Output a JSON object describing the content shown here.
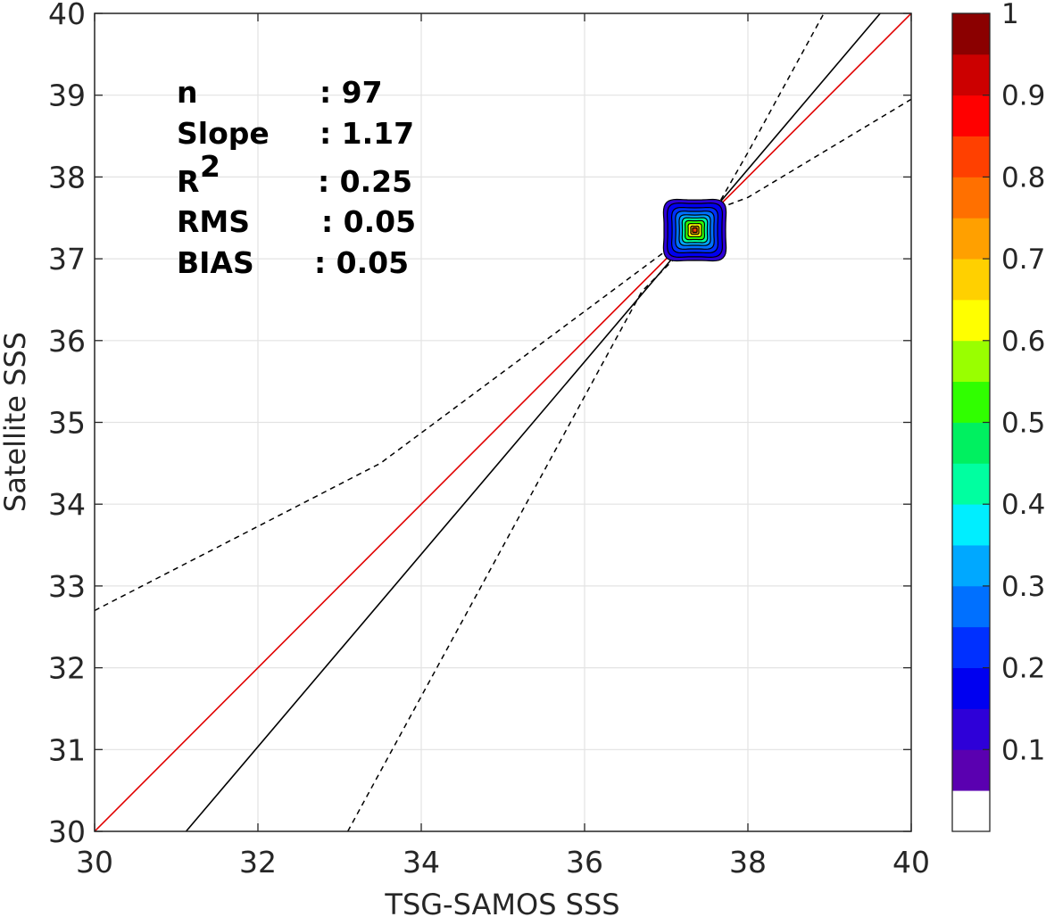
{
  "chart_data": {
    "type": "scatter",
    "title": "",
    "xlabel": "TSG-SAMOS SSS",
    "ylabel": "Satellite SSS",
    "xlim": [
      30,
      40
    ],
    "ylim": [
      30,
      40
    ],
    "xticks": [
      "30",
      "32",
      "34",
      "36",
      "38",
      "40"
    ],
    "yticks": [
      "30",
      "31",
      "32",
      "33",
      "34",
      "35",
      "36",
      "37",
      "38",
      "39",
      "40"
    ],
    "grid": true,
    "stats": [
      {
        "label": "n",
        "value": ": 97"
      },
      {
        "label": "Slope",
        "value": ": 1.17"
      },
      {
        "label": "R",
        "superscript": "2",
        "value": ": 0.25"
      },
      {
        "label": "RMS",
        "value": ": 0.05"
      },
      {
        "label": "BIAS",
        "value": ": 0.05"
      }
    ],
    "lines": [
      {
        "style": "one-to-one",
        "color": "#e00000",
        "points": [
          [
            30,
            30
          ],
          [
            40,
            40
          ]
        ]
      },
      {
        "style": "regression",
        "color": "#000000",
        "points": [
          [
            31.12,
            30
          ],
          [
            39.62,
            40
          ]
        ]
      },
      {
        "style": "confidence-upper",
        "color": "#000000",
        "dash": true,
        "points": [
          [
            30,
            32.7
          ],
          [
            33.5,
            34.5
          ],
          [
            37.0,
            37.1
          ],
          [
            37.6,
            37.6
          ],
          [
            38.0,
            37.75
          ],
          [
            40,
            38.95
          ]
        ]
      },
      {
        "style": "confidence-lower",
        "color": "#000000",
        "dash": true,
        "points": [
          [
            33.1,
            30
          ],
          [
            36.7,
            36.6
          ],
          [
            37.2,
            37.1
          ],
          [
            37.6,
            37.6
          ],
          [
            38.0,
            38.3
          ],
          [
            38.93,
            40
          ]
        ]
      }
    ],
    "density": {
      "center": [
        37.35,
        37.35
      ],
      "radii": [
        0.42,
        0.37,
        0.31,
        0.26,
        0.21,
        0.17,
        0.13,
        0.09,
        0.055,
        0.03
      ],
      "levels": [
        0.1,
        0.15,
        0.2,
        0.25,
        0.3,
        0.4,
        0.5,
        0.6,
        0.7,
        0.8
      ]
    },
    "colorbar": {
      "ticks": [
        "0.1",
        "0.2",
        "0.3",
        "0.4",
        "0.5",
        "0.6",
        "0.7",
        "0.8",
        "0.9",
        "1"
      ],
      "range": [
        0,
        1
      ],
      "colors": [
        "#ffffff",
        "#5a00b0",
        "#2e00d8",
        "#0000f0",
        "#0030ff",
        "#0070ff",
        "#00a8ff",
        "#00eeff",
        "#00ffa0",
        "#00f060",
        "#30ff00",
        "#99ff00",
        "#ffff00",
        "#ffd000",
        "#ffa000",
        "#ff7000",
        "#ff4000",
        "#ff0000",
        "#cc0000",
        "#8b0000"
      ]
    }
  }
}
